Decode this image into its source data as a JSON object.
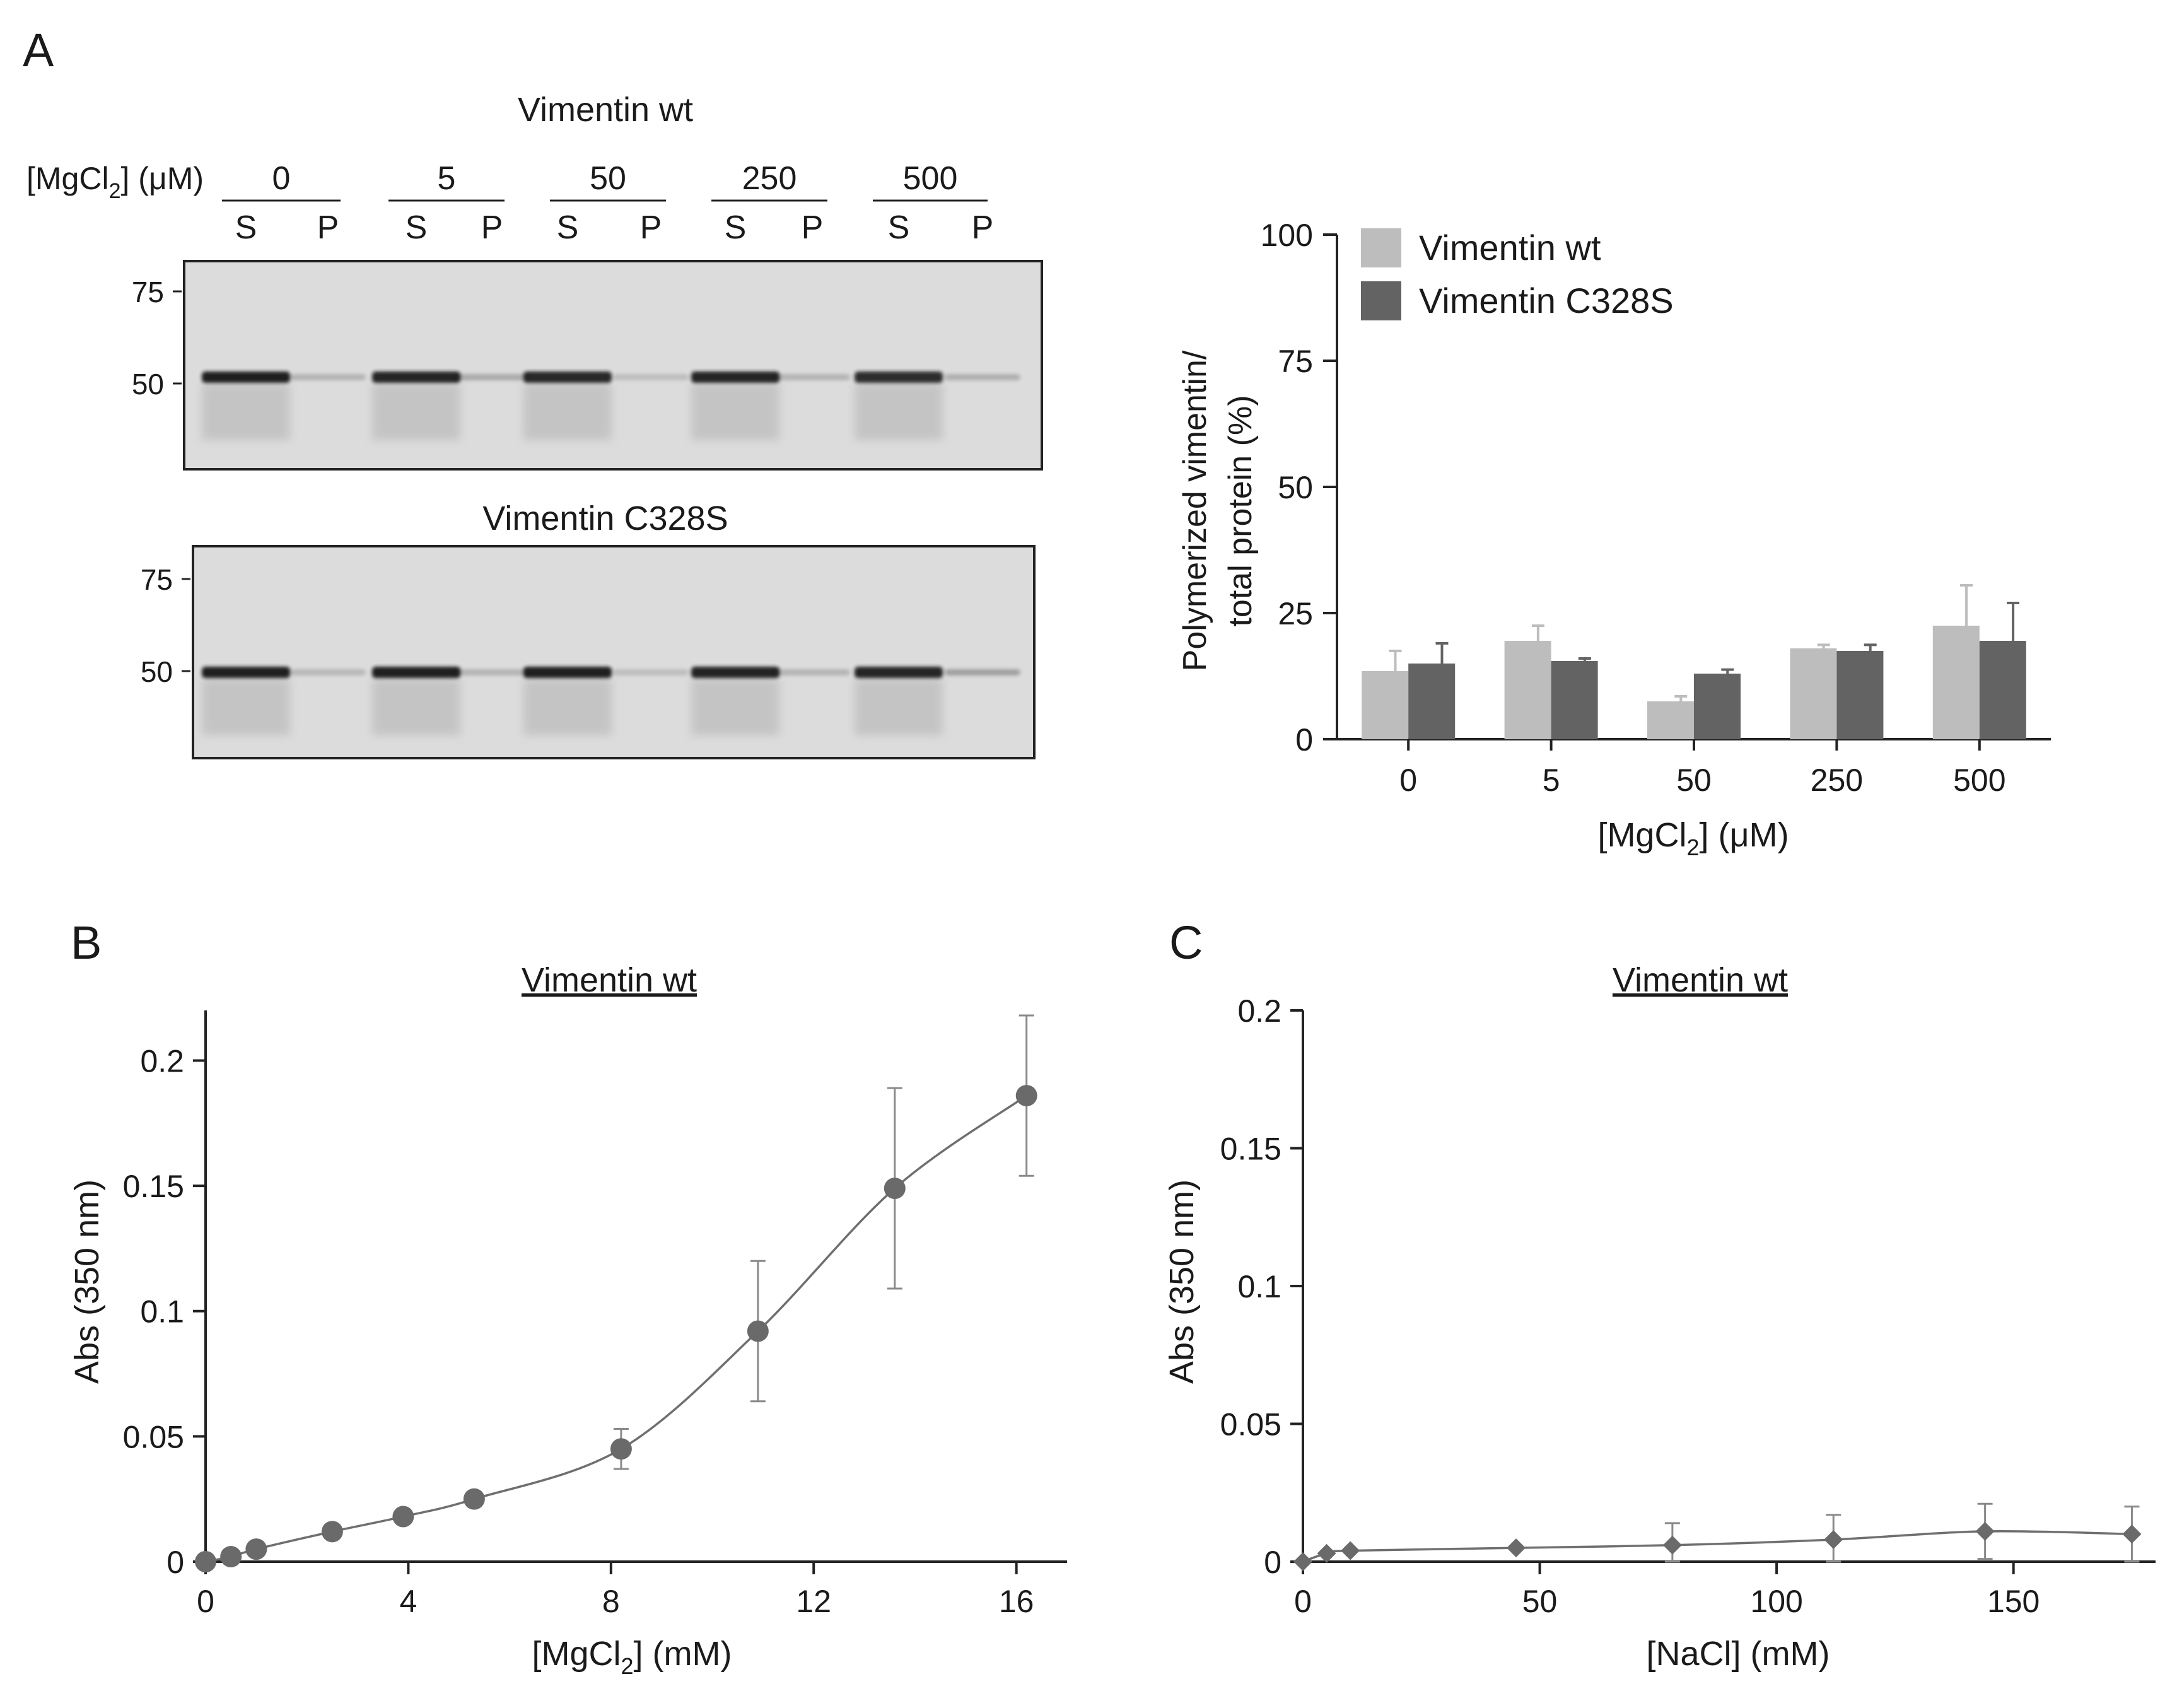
{
  "panels": {
    "a": {
      "letter": "A"
    },
    "b": {
      "letter": "B"
    },
    "c": {
      "letter": "C"
    }
  },
  "gels": {
    "top_title": "Vimentin wt",
    "bottom_title": "Vimentin C328S",
    "conc_label_pre": "[MgCl",
    "conc_label_sub": "2",
    "conc_label_post": "] (μM)",
    "concentrations": [
      "0",
      "5",
      "50",
      "250",
      "500"
    ],
    "lane_labels": [
      "S",
      "P",
      "S",
      "P",
      "S",
      "P",
      "S",
      "P",
      "S",
      "P"
    ],
    "marker_labels": [
      "75",
      "50"
    ],
    "marker_kda": [
      75,
      50
    ],
    "band_intensity": {
      "wt": [
        0.95,
        0.2,
        0.92,
        0.25,
        0.9,
        0.15,
        0.92,
        0.2,
        0.88,
        0.22
      ],
      "c328s": [
        0.95,
        0.18,
        0.95,
        0.2,
        0.95,
        0.15,
        0.93,
        0.2,
        0.92,
        0.3
      ]
    }
  },
  "colors": {
    "wt": "#bdbdbd",
    "c328s": "#636363",
    "line": "#6f6f6f",
    "marker": "#6a6a6a",
    "axis": "#222222",
    "gel_bg": "#dcdcdc",
    "band": "#141414"
  },
  "chart_data": [
    {
      "type": "bar",
      "title": "",
      "categories": [
        "0",
        "5",
        "50",
        "250",
        "500"
      ],
      "series": [
        {
          "name": "Vimentin wt",
          "values": [
            13.5,
            19.5,
            7.5,
            18,
            22.5
          ],
          "errors": [
            4,
            3,
            1,
            0.7,
            8
          ]
        },
        {
          "name": "Vimentin C328S",
          "values": [
            15,
            15.5,
            13,
            17.5,
            19.5
          ],
          "errors": [
            4,
            0.5,
            0.8,
            1.2,
            7.5
          ]
        }
      ],
      "xlabel_pre": "[MgCl",
      "xlabel_sub": "2",
      "xlabel_post": "] (μM)",
      "ylabel_line1": "Polymerized vimentin/",
      "ylabel_line2": "total protein (%)",
      "ylim": [
        0,
        100
      ],
      "yticks": [
        0,
        25,
        50,
        75,
        100
      ],
      "ytick_labels": [
        "0",
        "25",
        "50",
        "75",
        "100"
      ],
      "legend": "top-left"
    },
    {
      "type": "line",
      "title": "Vimentin wt",
      "x": [
        0,
        0.5,
        1,
        2.5,
        3.9,
        5.3,
        8.2,
        10.9,
        13.6,
        16.2
      ],
      "y": [
        0,
        0.002,
        0.005,
        0.012,
        0.018,
        0.025,
        0.045,
        0.092,
        0.149,
        0.186
      ],
      "yerr": [
        0,
        0,
        0,
        0,
        0,
        0,
        0.008,
        0.028,
        0.04,
        0.032
      ],
      "xlabel_pre": "[MgCl",
      "xlabel_sub": "2",
      "xlabel_post": "] (mM)",
      "ylabel": "Abs (350 nm)",
      "xlim": [
        0,
        17
      ],
      "ylim": [
        0,
        0.22
      ],
      "xticks": [
        0,
        4,
        8,
        12,
        16
      ],
      "xtick_labels": [
        "0",
        "4",
        "8",
        "12",
        "16"
      ],
      "yticks": [
        0,
        0.05,
        0.1,
        0.15,
        0.2
      ],
      "ytick_labels": [
        "0",
        "0.05",
        "0.1",
        "0.15",
        "0.2"
      ],
      "marker": "circle"
    },
    {
      "type": "line",
      "title": "Vimentin wt",
      "x": [
        0,
        5,
        10,
        45,
        78,
        112,
        144,
        175
      ],
      "y": [
        0,
        0.003,
        0.004,
        0.005,
        0.006,
        0.008,
        0.011,
        0.01
      ],
      "yerr": [
        0,
        0,
        0,
        0,
        0.008,
        0.009,
        0.01,
        0.01
      ],
      "xlabel": "[NaCl] (mM)",
      "ylabel": "Abs (350 nm)",
      "xlim": [
        0,
        180
      ],
      "ylim": [
        0,
        0.2
      ],
      "xticks": [
        0,
        50,
        100,
        150
      ],
      "xtick_labels": [
        "0",
        "50",
        "100",
        "150"
      ],
      "yticks": [
        0,
        0.05,
        0.1,
        0.15,
        0.2
      ],
      "ytick_labels": [
        "0",
        "0.05",
        "0.1",
        "0.15",
        "0.2"
      ],
      "marker": "diamond"
    }
  ]
}
